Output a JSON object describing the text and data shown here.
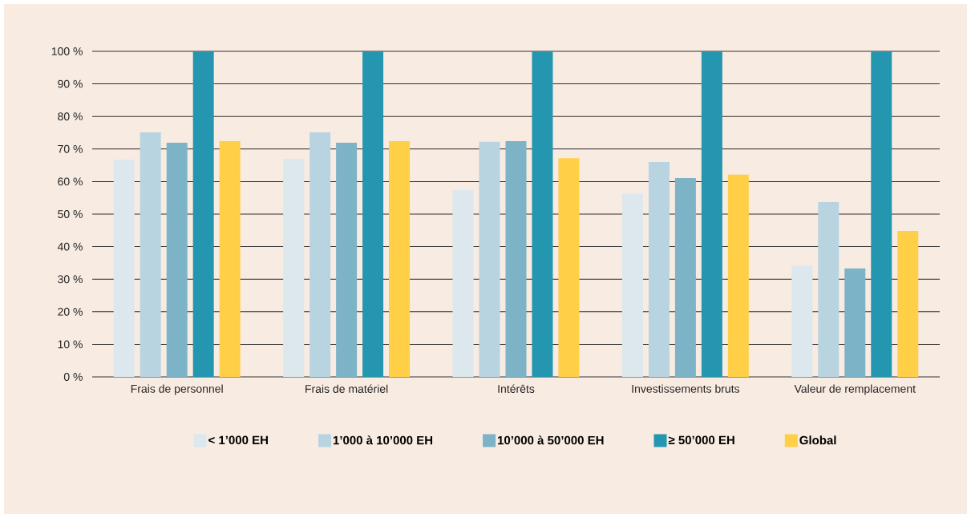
{
  "chart_data": {
    "type": "bar",
    "categories": [
      "Frais de personnel",
      "Frais de matériel",
      "Intérêts",
      "Investissements bruts",
      "Valeur de remplacement"
    ],
    "series": [
      {
        "name": "< 1’000 EH",
        "color": "#dce8ee",
        "values": [
          66.7,
          67,
          57.4,
          56.2,
          34.2
        ]
      },
      {
        "name": "1’000 à 10’000 EH",
        "color": "#b8d4e0",
        "values": [
          75.1,
          75.1,
          72.2,
          66,
          53.7
        ]
      },
      {
        "name": "10’000 à 50’000 EH",
        "color": "#7db3c7",
        "values": [
          71.9,
          71.9,
          72.4,
          61.1,
          33.3
        ]
      },
      {
        "name": "≥ 50’000 EH",
        "color": "#2596b0",
        "values": [
          100,
          100,
          100,
          100,
          100
        ]
      },
      {
        "name": "Global",
        "color": "#ffcf48",
        "values": [
          72.4,
          72.4,
          67.2,
          62.1,
          44.8
        ]
      }
    ],
    "ylim": [
      0,
      100
    ],
    "yticks": [
      {
        "value": 0,
        "label": "0 %"
      },
      {
        "value": 10,
        "label": "10 %"
      },
      {
        "value": 20,
        "label": "20 %"
      },
      {
        "value": 30,
        "label": "30 %"
      },
      {
        "value": 40,
        "label": "40 %"
      },
      {
        "value": 50,
        "label": "50 %"
      },
      {
        "value": 60,
        "label": "60 %"
      },
      {
        "value": 70,
        "label": "70 %"
      },
      {
        "value": 80,
        "label": "80 %"
      },
      {
        "value": 90,
        "label": "90 %"
      },
      {
        "value": 100,
        "label": "100 %"
      }
    ],
    "grid": "y",
    "legend": "bottom"
  }
}
